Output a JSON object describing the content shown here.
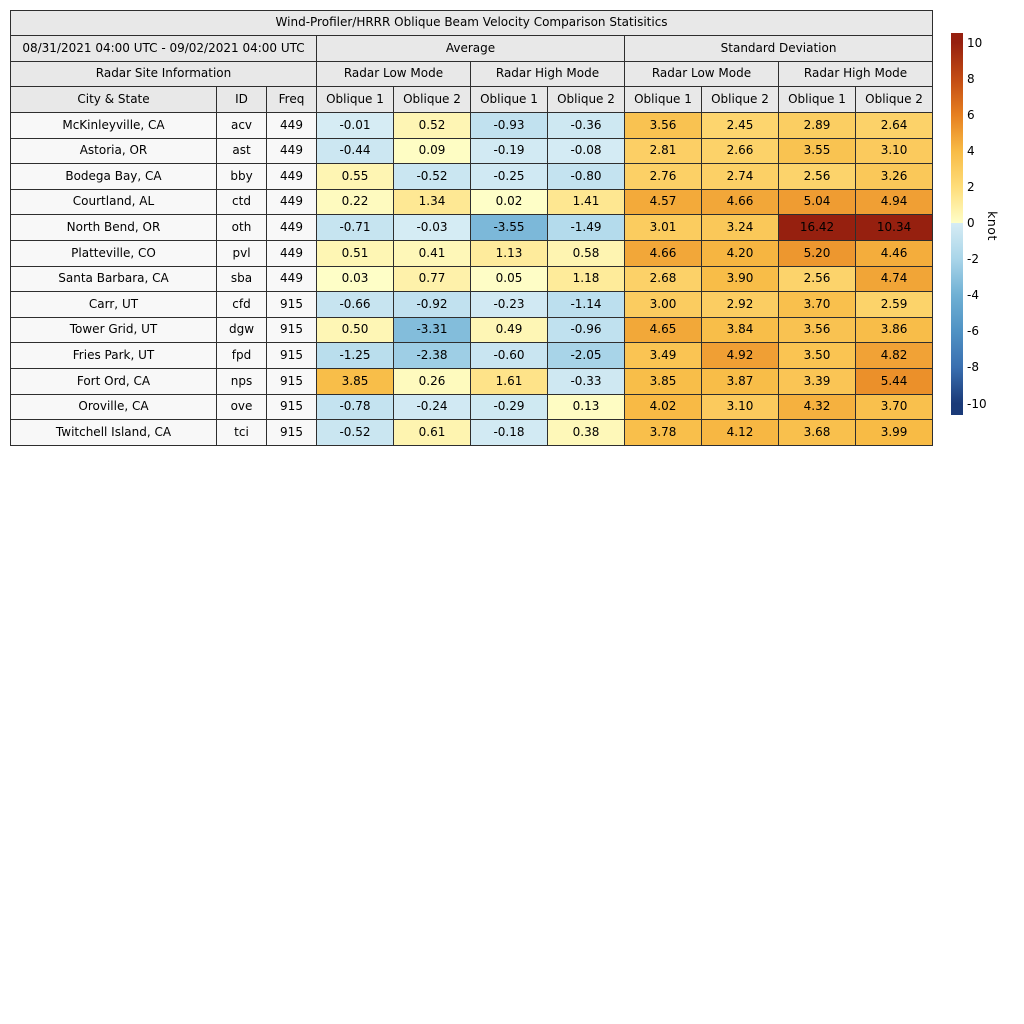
{
  "chart_data": {
    "type": "heatmap",
    "title": "Wind-Profiler/HRRR Oblique Beam Velocity Comparison Statisitics",
    "date_range": "08/31/2021 04:00 UTC - 09/02/2021 04:00 UTC",
    "site_header": "Radar Site Information",
    "groups": [
      {
        "label": "Average",
        "modes": [
          "Radar Low Mode",
          "Radar High Mode"
        ]
      },
      {
        "label": "Standard Deviation",
        "modes": [
          "Radar Low Mode",
          "Radar High Mode"
        ]
      }
    ],
    "columns": [
      "City & State",
      "ID",
      "Freq",
      "Oblique 1",
      "Oblique 2",
      "Oblique 1",
      "Oblique 2",
      "Oblique 1",
      "Oblique 2",
      "Oblique 1",
      "Oblique 2"
    ],
    "rows": [
      {
        "city": "McKinleyville, CA",
        "id": "acv",
        "freq": "449",
        "values": [
          "-0.01",
          "0.52",
          "-0.93",
          "-0.36",
          "3.56",
          "2.45",
          "2.89",
          "2.64"
        ]
      },
      {
        "city": "Astoria, OR",
        "id": "ast",
        "freq": "449",
        "values": [
          "-0.44",
          "0.09",
          "-0.19",
          "-0.08",
          "2.81",
          "2.66",
          "3.55",
          "3.10"
        ]
      },
      {
        "city": "Bodega Bay, CA",
        "id": "bby",
        "freq": "449",
        "values": [
          "0.55",
          "-0.52",
          "-0.25",
          "-0.80",
          "2.76",
          "2.74",
          "2.56",
          "3.26"
        ]
      },
      {
        "city": "Courtland, AL",
        "id": "ctd",
        "freq": "449",
        "values": [
          "0.22",
          "1.34",
          "0.02",
          "1.41",
          "4.57",
          "4.66",
          "5.04",
          "4.94"
        ]
      },
      {
        "city": "North Bend, OR",
        "id": "oth",
        "freq": "449",
        "values": [
          "-0.71",
          "-0.03",
          "-3.55",
          "-1.49",
          "3.01",
          "3.24",
          "16.42",
          "10.34"
        ]
      },
      {
        "city": "Platteville, CO",
        "id": "pvl",
        "freq": "449",
        "values": [
          "0.51",
          "0.41",
          "1.13",
          "0.58",
          "4.66",
          "4.20",
          "5.20",
          "4.46"
        ]
      },
      {
        "city": "Santa Barbara, CA",
        "id": "sba",
        "freq": "449",
        "values": [
          "0.03",
          "0.77",
          "0.05",
          "1.18",
          "2.68",
          "3.90",
          "2.56",
          "4.74"
        ]
      },
      {
        "city": "Carr, UT",
        "id": "cfd",
        "freq": "915",
        "values": [
          "-0.66",
          "-0.92",
          "-0.23",
          "-1.14",
          "3.00",
          "2.92",
          "3.70",
          "2.59"
        ]
      },
      {
        "city": "Tower Grid, UT",
        "id": "dgw",
        "freq": "915",
        "values": [
          "0.50",
          "-3.31",
          "0.49",
          "-0.96",
          "4.65",
          "3.84",
          "3.56",
          "3.86"
        ]
      },
      {
        "city": "Fries Park, UT",
        "id": "fpd",
        "freq": "915",
        "values": [
          "-1.25",
          "-2.38",
          "-0.60",
          "-2.05",
          "3.49",
          "4.92",
          "3.50",
          "4.82"
        ]
      },
      {
        "city": "Fort Ord, CA",
        "id": "nps",
        "freq": "915",
        "values": [
          "3.85",
          "0.26",
          "1.61",
          "-0.33",
          "3.85",
          "3.87",
          "3.39",
          "5.44"
        ]
      },
      {
        "city": "Oroville, CA",
        "id": "ove",
        "freq": "915",
        "values": [
          "-0.78",
          "-0.24",
          "-0.29",
          "0.13",
          "4.02",
          "3.10",
          "4.32",
          "3.70"
        ]
      },
      {
        "city": "Twitchell Island, CA",
        "id": "tci",
        "freq": "915",
        "values": [
          "-0.52",
          "0.61",
          "-0.18",
          "0.38",
          "3.78",
          "4.12",
          "3.68",
          "3.99"
        ]
      }
    ],
    "colorbar": {
      "label": "knot",
      "ticks": [
        10,
        8,
        6,
        4,
        2,
        0,
        -2,
        -4,
        -6,
        -8,
        -10
      ],
      "range": [
        -10,
        10
      ],
      "positive_stops": [
        {
          "v": 0,
          "c": "#fefec8"
        },
        {
          "v": 2,
          "c": "#fedd7a"
        },
        {
          "v": 4,
          "c": "#f8bb45"
        },
        {
          "v": 6,
          "c": "#e67f20"
        },
        {
          "v": 8,
          "c": "#c24b14"
        },
        {
          "v": 10,
          "c": "#96200f"
        }
      ],
      "negative_stops": [
        {
          "v": 0,
          "c": "#d6ecf4"
        },
        {
          "v": 2,
          "c": "#a9d5e9"
        },
        {
          "v": 4,
          "c": "#6fb0d4"
        },
        {
          "v": 6,
          "c": "#4f92c4"
        },
        {
          "v": 8,
          "c": "#3a6fb0"
        },
        {
          "v": 10,
          "c": "#1a3a78"
        }
      ]
    },
    "palette": {
      "header_bg": "#e8e8e8",
      "row_label_bg": "#f8f8f8",
      "border": "#2e2e2e",
      "text": "#000000",
      "background": "#ffffff"
    }
  }
}
